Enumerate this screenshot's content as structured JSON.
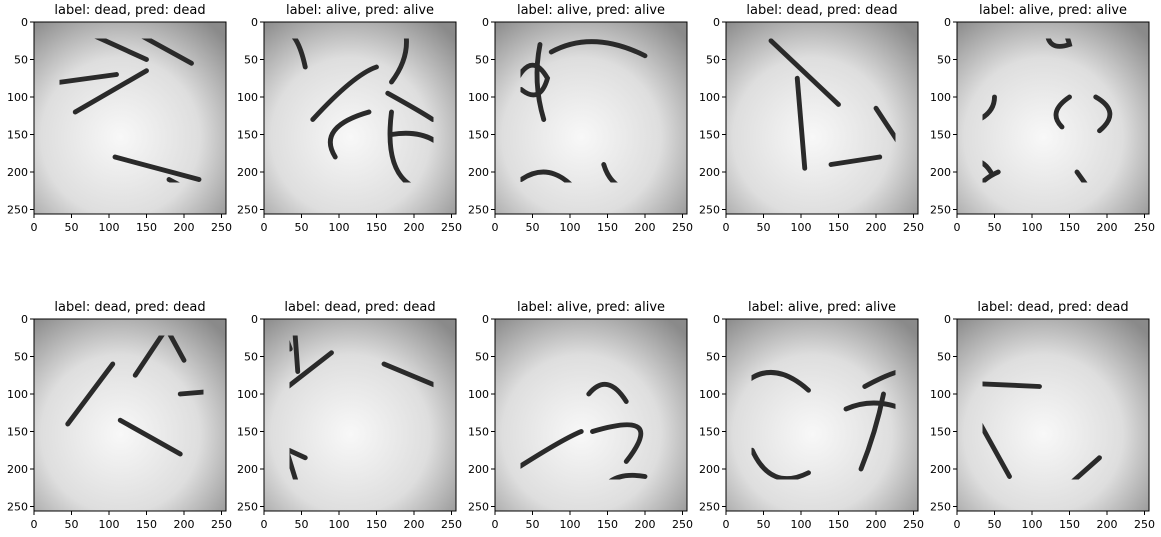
{
  "axis": {
    "x_ticks": [
      "0",
      "50",
      "100",
      "150",
      "200",
      "250"
    ],
    "y_ticks": [
      "0",
      "50",
      "100",
      "150",
      "200",
      "250"
    ]
  },
  "panels": [
    {
      "title": "label: dead, pred: dead",
      "label": "dead",
      "pred": "dead"
    },
    {
      "title": "label: alive, pred: alive",
      "label": "alive",
      "pred": "alive"
    },
    {
      "title": "label: alive, pred: alive",
      "label": "alive",
      "pred": "alive"
    },
    {
      "title": "label: dead, pred: dead",
      "label": "dead",
      "pred": "dead"
    },
    {
      "title": "label: alive, pred: alive",
      "label": "alive",
      "pred": "alive"
    },
    {
      "title": "label: dead, pred: dead",
      "label": "dead",
      "pred": "dead"
    },
    {
      "title": "label: dead, pred: dead",
      "label": "dead",
      "pred": "dead"
    },
    {
      "title": "label: alive, pred: alive",
      "label": "alive",
      "pred": "alive"
    },
    {
      "title": "label: alive, pred: alive",
      "label": "alive",
      "pred": "alive"
    },
    {
      "title": "label: dead, pred: dead",
      "label": "dead",
      "pred": "dead"
    }
  ]
}
